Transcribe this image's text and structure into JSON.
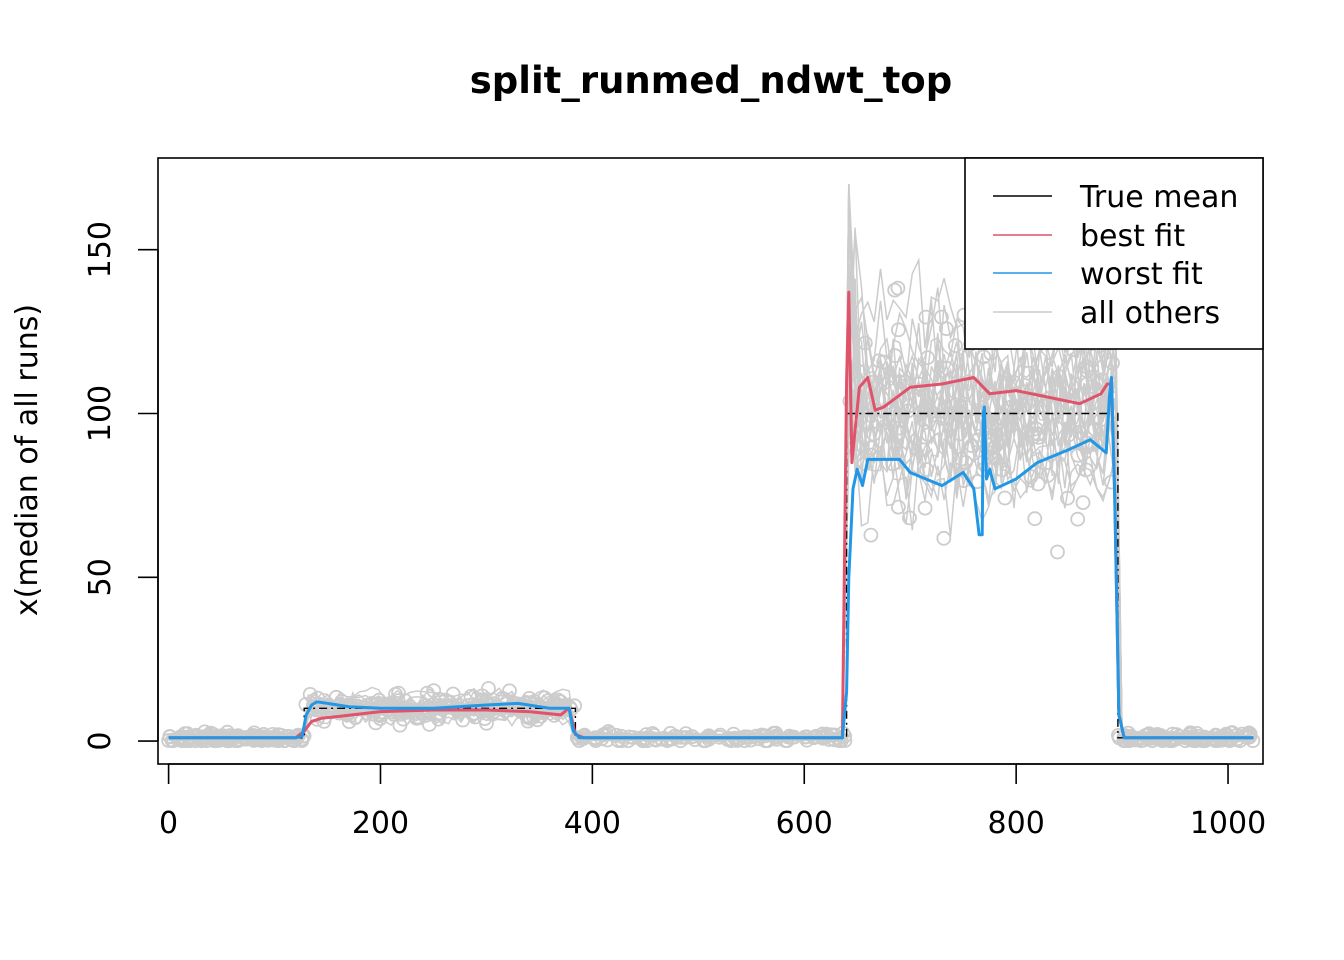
{
  "chart_data": {
    "type": "line",
    "title": "split_runmed_ndwt_top",
    "xlabel": "",
    "ylabel": "x(median of all runs)",
    "xlim": [
      -10,
      1033
    ],
    "ylim": [
      -7,
      178
    ],
    "xticks": [
      0,
      200,
      400,
      600,
      800,
      1000
    ],
    "yticks": [
      0,
      50,
      100,
      150
    ],
    "xtick_labels": [
      "0",
      "200",
      "400",
      "600",
      "800",
      "1000"
    ],
    "ytick_labels": [
      "0",
      "50",
      "100",
      "150"
    ],
    "legend_position": "top-right",
    "legend": [
      {
        "label": "True mean",
        "color": "#000000"
      },
      {
        "label": "best fit",
        "color": "#DF536B"
      },
      {
        "label": "worst fit",
        "color": "#2297E6"
      },
      {
        "label": "all others",
        "color": "#CCCCCC"
      }
    ],
    "segments": [
      {
        "x_start": 0,
        "x_end": 128,
        "true_mean": 1
      },
      {
        "x_start": 128,
        "x_end": 384,
        "true_mean": 10
      },
      {
        "x_start": 384,
        "x_end": 640,
        "true_mean": 1
      },
      {
        "x_start": 640,
        "x_end": 896,
        "true_mean": 100
      },
      {
        "x_start": 896,
        "x_end": 1024,
        "true_mean": 1
      }
    ],
    "series": [
      {
        "name": "True mean",
        "color": "#000000",
        "x": [
          0,
          128,
          128,
          384,
          384,
          640,
          640,
          896,
          896,
          1024
        ],
        "y": [
          1,
          1,
          10,
          10,
          1,
          1,
          100,
          100,
          1,
          1
        ]
      },
      {
        "name": "best fit",
        "color": "#DF536B",
        "x": [
          0,
          120,
          128,
          135,
          145,
          160,
          200,
          250,
          300,
          340,
          370,
          378,
          384,
          392,
          450,
          550,
          636,
          640,
          642,
          645,
          648,
          652,
          660,
          667,
          675,
          700,
          730,
          760,
          775,
          800,
          830,
          860,
          880,
          886,
          890,
          893,
          897,
          902,
          950,
          1024
        ],
        "y": [
          1,
          1,
          3,
          6,
          7,
          7.5,
          9,
          9.5,
          9.5,
          9,
          8,
          10,
          2,
          1,
          1,
          1,
          1,
          110,
          137,
          85,
          95,
          108,
          111,
          101,
          102,
          108,
          109,
          111,
          106,
          107,
          105,
          103,
          106,
          109,
          109,
          75,
          8,
          1,
          1,
          1
        ]
      },
      {
        "name": "worst fit",
        "color": "#2297E6",
        "x": [
          0,
          120,
          126,
          130,
          135,
          140,
          150,
          170,
          200,
          250,
          300,
          330,
          360,
          378,
          382,
          388,
          395,
          450,
          550,
          636,
          640,
          642,
          646,
          650,
          655,
          660,
          690,
          700,
          730,
          750,
          760,
          765,
          768,
          769,
          770,
          772,
          775,
          780,
          800,
          820,
          850,
          870,
          885,
          888,
          890,
          893,
          897,
          902,
          950,
          1024
        ],
        "y": [
          1,
          1,
          1.5,
          8,
          11,
          12,
          11.5,
          10.5,
          10,
          10,
          11,
          11.5,
          10,
          10,
          3,
          1,
          1,
          1,
          1,
          1,
          15,
          50,
          77,
          83,
          78,
          86,
          86,
          82,
          78,
          82,
          77,
          63,
          63,
          100,
          102,
          80,
          83,
          77,
          80,
          85,
          89,
          92,
          88,
          105,
          111,
          75,
          8,
          1,
          1,
          1
        ]
      }
    ],
    "others_noise": {
      "n_lines": 30,
      "n_points_per_segment": 120,
      "spread": [
        0.8,
        2.5,
        0.8,
        18,
        0.8
      ],
      "spike_max": 170
    }
  }
}
